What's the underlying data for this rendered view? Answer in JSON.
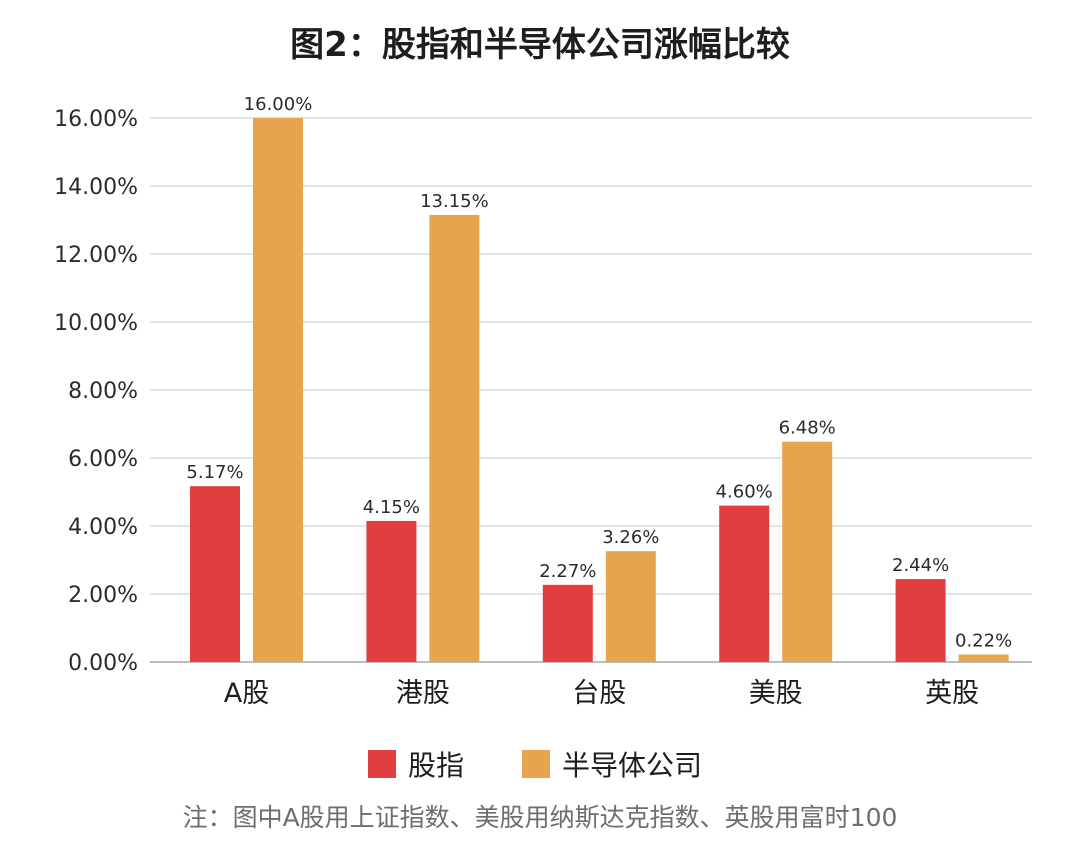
{
  "title": "图2：股指和半导体公司涨幅比较",
  "note": "注：图中A股用上证指数、美股用纳斯达克指数、英股用富时100",
  "colors": {
    "index": "#e13f3f",
    "semiconductor": "#e6a44f",
    "grid": "#dcdcdc",
    "text": "#2b2b2b"
  },
  "chart_data": {
    "type": "bar",
    "title": "图2：股指和半导体公司涨幅比较",
    "categories": [
      "A股",
      "港股",
      "台股",
      "美股",
      "英股"
    ],
    "series": [
      {
        "name": "股指",
        "color": "#e13f3f",
        "values": [
          5.17,
          4.15,
          2.27,
          4.6,
          2.44
        ],
        "labels": [
          "5.17%",
          "4.15%",
          "2.27%",
          "4.60%",
          "2.44%"
        ]
      },
      {
        "name": "半导体公司",
        "color": "#e6a44f",
        "values": [
          16.0,
          13.15,
          3.26,
          6.48,
          0.22
        ],
        "labels": [
          "16.00%",
          "13.15%",
          "3.26%",
          "6.48%",
          "0.22%"
        ]
      }
    ],
    "ylim": [
      0,
      16
    ],
    "yticks": [
      0,
      2,
      4,
      6,
      8,
      10,
      12,
      14,
      16
    ],
    "ytick_labels": [
      "0.00%",
      "2.00%",
      "4.00%",
      "6.00%",
      "8.00%",
      "10.00%",
      "12.00%",
      "14.00%",
      "16.00%"
    ],
    "grid": true,
    "legend_position": "bottom-center"
  }
}
